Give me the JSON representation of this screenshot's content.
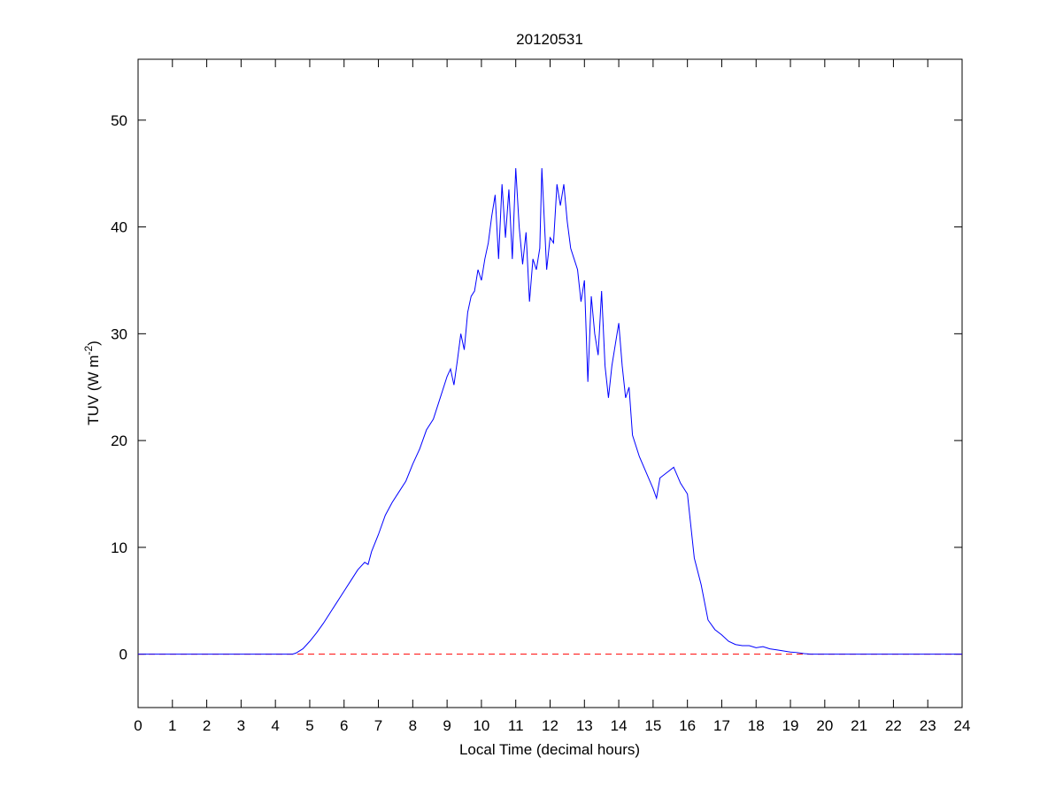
{
  "chart_data": {
    "type": "line",
    "title": "20120531",
    "xlabel": "Local Time (decimal hours)",
    "ylabel": {
      "text": "TUV (W m",
      "superscript": "-2",
      "suffix": ")"
    },
    "xlim": [
      0,
      24
    ],
    "xticks": [
      0,
      1,
      2,
      3,
      4,
      5,
      6,
      7,
      8,
      9,
      10,
      11,
      12,
      13,
      14,
      15,
      16,
      17,
      18,
      19,
      20,
      21,
      22,
      23,
      24
    ],
    "ylim": [
      -5,
      55.7
    ],
    "yticks": [
      0,
      10,
      20,
      30,
      40,
      50
    ],
    "series": [
      {
        "color": "#0000ff",
        "style": "solid",
        "x": [
          0,
          4.5,
          4.6,
          4.8,
          5.0,
          5.2,
          5.4,
          5.6,
          5.8,
          6.0,
          6.2,
          6.4,
          6.6,
          6.7,
          6.8,
          7.0,
          7.2,
          7.4,
          7.6,
          7.8,
          8.0,
          8.2,
          8.4,
          8.6,
          8.8,
          9.0,
          9.1,
          9.2,
          9.3,
          9.4,
          9.5,
          9.6,
          9.7,
          9.8,
          9.9,
          10.0,
          10.1,
          10.2,
          10.3,
          10.4,
          10.5,
          10.6,
          10.7,
          10.8,
          10.9,
          11.0,
          11.1,
          11.2,
          11.3,
          11.4,
          11.5,
          11.6,
          11.7,
          11.76,
          11.9,
          12.0,
          12.1,
          12.2,
          12.3,
          12.4,
          12.5,
          12.6,
          12.7,
          12.8,
          12.9,
          13.0,
          13.1,
          13.2,
          13.3,
          13.4,
          13.5,
          13.6,
          13.7,
          13.8,
          13.9,
          14.0,
          14.1,
          14.2,
          14.3,
          14.4,
          14.6,
          14.8,
          15.0,
          15.1,
          15.2,
          15.4,
          15.6,
          15.8,
          16.0,
          16.2,
          16.4,
          16.6,
          16.8,
          17.0,
          17.2,
          17.4,
          17.6,
          17.8,
          18.0,
          18.2,
          18.4,
          18.6,
          18.8,
          19.0,
          19.2,
          19.4,
          19.6,
          24
        ],
        "values": [
          0,
          0,
          0.1,
          0.5,
          1.2,
          2.0,
          2.9,
          3.9,
          4.9,
          5.9,
          6.9,
          7.9,
          8.6,
          8.4,
          9.6,
          11.2,
          13.0,
          14.2,
          15.2,
          16.2,
          17.8,
          19.2,
          21.0,
          22.0,
          24.0,
          26.0,
          26.7,
          25.2,
          27.5,
          30.0,
          28.5,
          32.0,
          33.5,
          34.0,
          36.0,
          35.0,
          37.0,
          38.5,
          41.0,
          43.0,
          37.0,
          44.0,
          39.0,
          43.5,
          37.0,
          45.5,
          40.0,
          36.5,
          39.5,
          33.0,
          37.0,
          36.0,
          38.0,
          45.5,
          36.0,
          39.0,
          38.5,
          44.0,
          42.0,
          44.0,
          40.5,
          38.0,
          37.0,
          36.0,
          33.0,
          35.0,
          25.5,
          33.5,
          30.0,
          28.0,
          34.0,
          27.0,
          24.0,
          27.0,
          29.0,
          31.0,
          27.0,
          24.0,
          25.0,
          20.5,
          18.5,
          17.0,
          15.5,
          14.6,
          16.5,
          17.0,
          17.5,
          16.0,
          15.0,
          9.0,
          6.5,
          3.2,
          2.3,
          1.8,
          1.2,
          0.9,
          0.8,
          0.8,
          0.6,
          0.7,
          0.5,
          0.4,
          0.3,
          0.2,
          0.15,
          0.05,
          0,
          0
        ]
      },
      {
        "color": "#ff0000",
        "style": "dashed",
        "x": [
          0,
          24
        ],
        "values": [
          0,
          0
        ]
      }
    ]
  }
}
